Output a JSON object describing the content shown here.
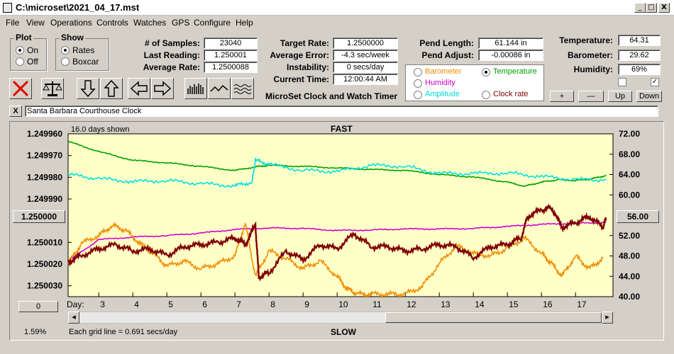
{
  "window": {
    "title": "C:\\microset\\2021_04_17.mst",
    "minimize": "_",
    "restore": "□",
    "close": "X"
  },
  "menu": [
    "File",
    "View",
    "Operations",
    "Controls",
    "Watches",
    "GPS",
    "Configure",
    "Help"
  ],
  "plot_group": {
    "title": "Plot",
    "on": "On",
    "off": "Off",
    "selected": "On"
  },
  "show_group": {
    "title": "Show",
    "rates": "Rates",
    "boxcar": "Boxcar",
    "selected": "Rates"
  },
  "stats": {
    "samples_label": "# of Samples:",
    "samples": "23040",
    "last_reading_label": "Last Reading:",
    "last_reading": "1.250001",
    "average_rate_label": "Average Rate:",
    "average_rate": "1.2500088"
  },
  "targets": {
    "target_rate_label": "Target Rate:",
    "target_rate": "1.2500000",
    "average_error_label": "Average Error:",
    "average_error": "-4.3 sec/week",
    "instability_label": "Instability:",
    "instability": "0 secs/day",
    "current_time_label": "Current Time:",
    "current_time": "12:00:44 AM"
  },
  "app_caption": "MicroSet Clock and Watch Timer",
  "pendulum": {
    "length_label": "Pend Length:",
    "length": "61.144 in",
    "adjust_label": "Pend Adjust:",
    "adjust": "-0.00086 in"
  },
  "series_select": {
    "barometer": "Barometer",
    "temperature": "Temperature",
    "humidity": "Humidity",
    "amplitude": "Amplitude",
    "clock_rate": "Clock rate",
    "selected": "Temperature"
  },
  "environment": {
    "temperature_label": "Temperature:",
    "temperature": "64.31",
    "barometer_label": "Barometer:",
    "barometer": "29.62",
    "humidity_label": "Humidity:",
    "humidity": "69%",
    "check_left": false,
    "check_right": true
  },
  "scale_buttons": {
    "plus": "+",
    "minus": "—",
    "up": "Up",
    "down": "Down"
  },
  "clock_name": "Santa Barbara Courthouse Clock",
  "clear_button": "X",
  "colors": {
    "barometer": "#f08c00",
    "temperature": "#00a000",
    "humidity": "#d000d0",
    "amplitude": "#00e0e0",
    "clock_rate": "#800000",
    "plot_bg": "#ffffc8"
  },
  "chart_data": {
    "type": "line",
    "days_shown": "16.0 days shown",
    "top_label": "FAST",
    "bottom_label": "SLOW",
    "footer": "Each grid line = 0.691 secs/day",
    "percent": "1.59%",
    "left_center_button": "1.250000",
    "right_center_button": "56.00",
    "zero_button": "0",
    "x_axis_label": "Day:",
    "x_ticks": [
      "3",
      "4",
      "5",
      "6",
      "7",
      "8",
      "9",
      "10",
      "11",
      "12",
      "13",
      "14",
      "15",
      "16",
      "17"
    ],
    "y_left_ticks": [
      "1.249960",
      "1.249970",
      "1.249980",
      "1.249990",
      "1.250000",
      "1.250010",
      "1.250020",
      "1.250030"
    ],
    "y_right_ticks": [
      "72.00",
      "68.00",
      "64.00",
      "60.00",
      "56.00",
      "52.00",
      "48.00",
      "44.00",
      "40.00"
    ],
    "x_range": [
      2.1,
      18.1
    ],
    "y_left_range": [
      1.24996,
      1.250035
    ],
    "y_right_range": [
      40,
      72
    ],
    "series": [
      {
        "name": "Temperature",
        "color": "#00a000",
        "x": [
          2.1,
          3,
          4,
          5,
          6,
          7,
          7.6,
          8,
          9,
          10,
          11,
          12,
          13,
          14,
          15,
          15.5,
          16,
          16.5,
          17,
          17.5,
          17.9
        ],
        "y": [
          70.5,
          68.5,
          66.8,
          66.3,
          65.6,
          64.8,
          65.5,
          65.8,
          65.6,
          65.3,
          65.0,
          64.8,
          64.0,
          63.5,
          62.5,
          61.7,
          62.5,
          63.0,
          62.8,
          63.2,
          63.8
        ]
      },
      {
        "name": "Amplitude",
        "color": "#00e0e0",
        "x": [
          2.1,
          3,
          4,
          5,
          6,
          7,
          7.5,
          7.6,
          8,
          9,
          10,
          11,
          12,
          13,
          14,
          15,
          16,
          17,
          17.9
        ],
        "y": [
          64.0,
          63.2,
          62.6,
          62.8,
          62.2,
          61.8,
          62.5,
          66.8,
          66.0,
          64.8,
          64.6,
          65.8,
          65.6,
          64.2,
          64.2,
          64.3,
          63.6,
          63.0,
          63.0
        ]
      },
      {
        "name": "Humidity",
        "color": "#d000d0",
        "x": [
          2.1,
          3,
          4,
          5,
          6,
          7,
          8,
          9,
          10,
          11,
          12,
          13,
          14,
          15,
          16,
          17,
          17.9
        ],
        "y": [
          47.0,
          51.2,
          51.7,
          52.0,
          52.5,
          53.2,
          53.5,
          53.4,
          53.0,
          53.1,
          53.3,
          53.3,
          53.4,
          53.8,
          54.2,
          54.4,
          54.6
        ]
      },
      {
        "name": "Barometer",
        "color": "#f08c00",
        "x": [
          2.1,
          2.5,
          3,
          3.4,
          3.8,
          4.2,
          4.6,
          5,
          5.5,
          6,
          6.5,
          7,
          7.3,
          7.6,
          8,
          8.5,
          9,
          9.5,
          10,
          10.3,
          10.6,
          11,
          11.5,
          12,
          12.5,
          13,
          13.5,
          14,
          14.5,
          15,
          15.5,
          16,
          16.3,
          16.6,
          17,
          17.4,
          17.8
        ],
        "y": [
          46.5,
          50.5,
          52.0,
          54.0,
          53.0,
          50.5,
          48.5,
          46.0,
          47.0,
          45.5,
          46.5,
          48.0,
          54.5,
          44.0,
          49.0,
          47.5,
          45.5,
          47.0,
          44.0,
          41.5,
          40.5,
          40.5,
          40.5,
          40.5,
          42.0,
          46.5,
          50.0,
          48.5,
          48.0,
          49.5,
          51.5,
          48.5,
          46.5,
          44.0,
          48.0,
          45.5,
          47.5
        ]
      },
      {
        "name": "Clock rate",
        "color": "#800000",
        "x": [
          2.1,
          2.5,
          3,
          3.5,
          4,
          4.5,
          5,
          5.5,
          6,
          6.5,
          7,
          7.3,
          7.6,
          7.7,
          8,
          8.5,
          9,
          9.5,
          10,
          10.5,
          11,
          11.5,
          12,
          12.5,
          13,
          13.5,
          14,
          14.5,
          15,
          15.4,
          15.6,
          16,
          16.3,
          16.6,
          17,
          17.4,
          17.8,
          17.9
        ],
        "y": [
          1.250019,
          1.250016,
          1.250013,
          1.250011,
          1.250014,
          1.250013,
          1.250016,
          1.250012,
          1.250011,
          1.25001,
          1.250008,
          1.250011,
          1.250002,
          1.250026,
          1.250024,
          1.250014,
          1.250018,
          1.250011,
          1.250013,
          1.250006,
          1.250012,
          1.250012,
          1.250014,
          1.250013,
          1.250011,
          1.250012,
          1.250017,
          1.250012,
          1.250011,
          1.250008,
          1.249998,
          1.249995,
          1.249994,
          1.250003,
          1.250001,
          1.249998,
          1.250003,
          1.249999
        ]
      }
    ]
  }
}
